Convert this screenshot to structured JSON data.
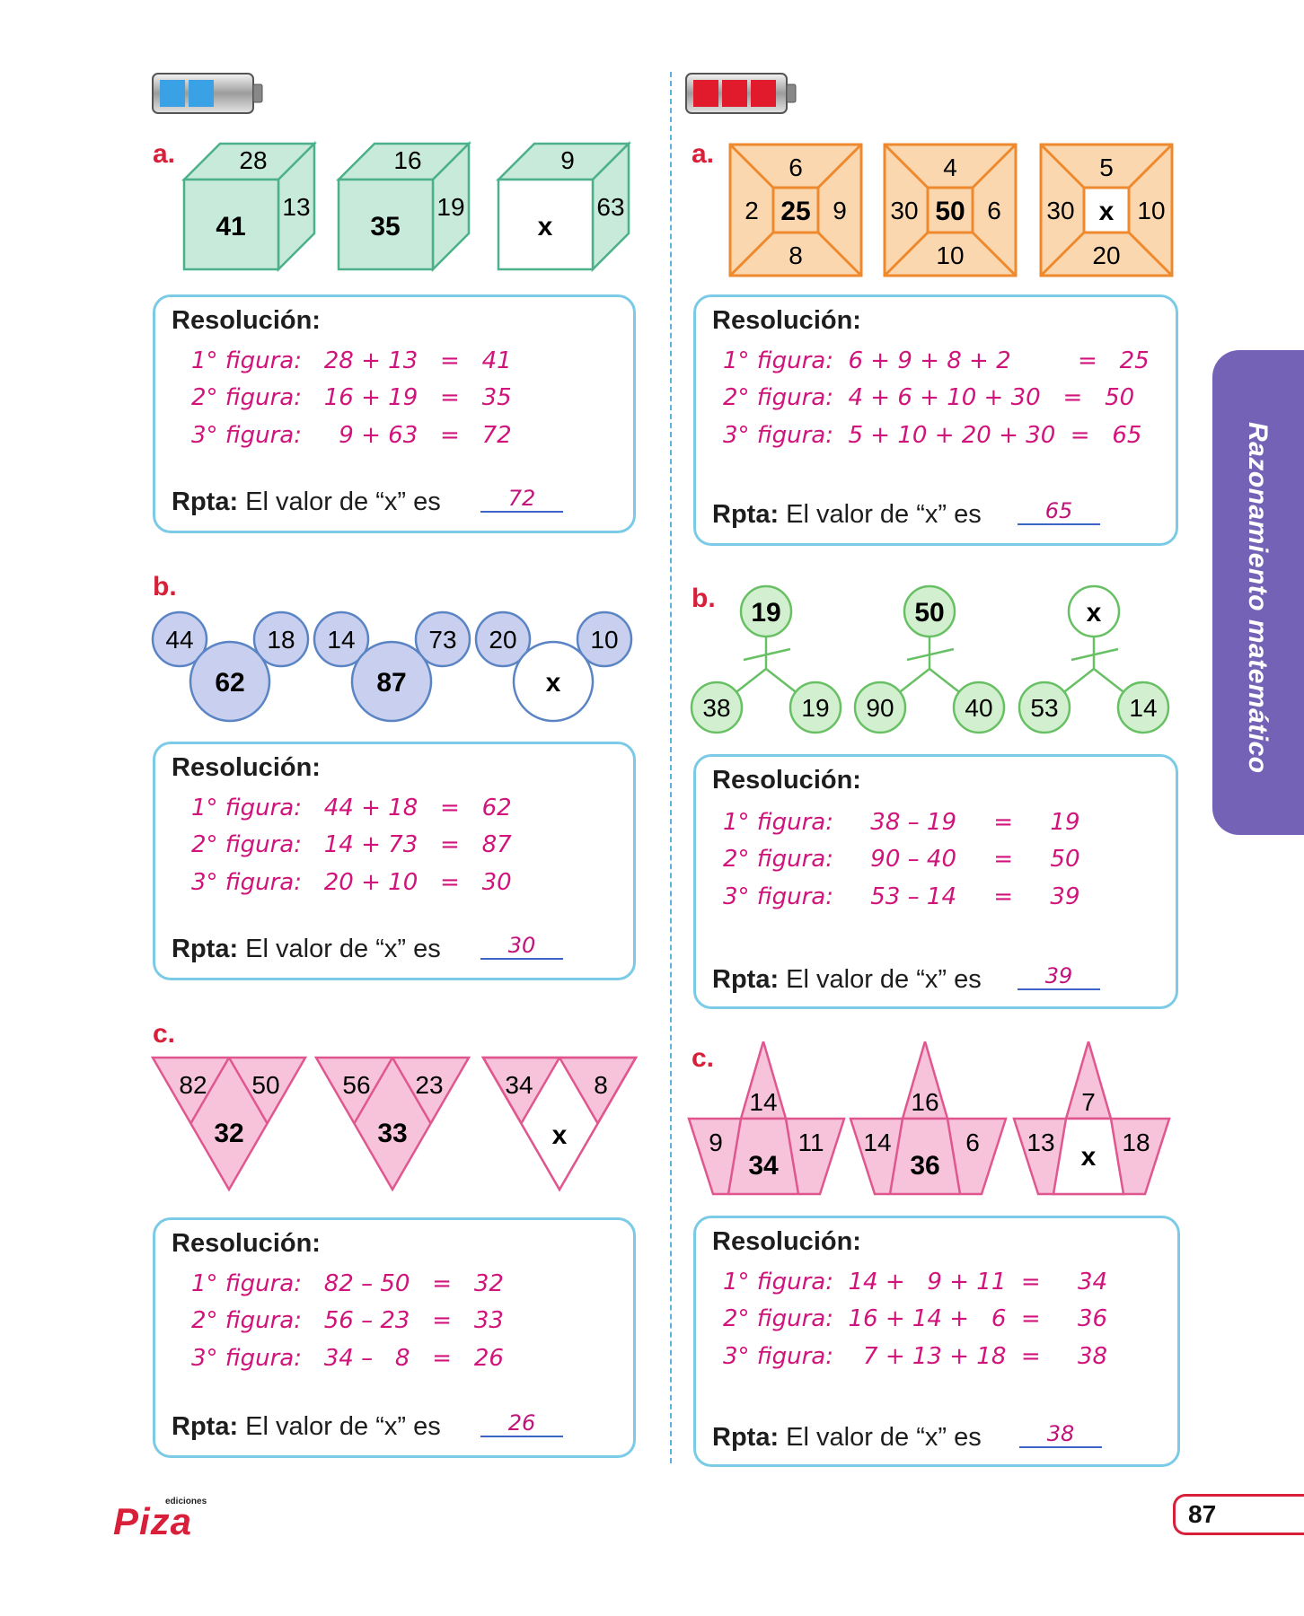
{
  "labels": {
    "a": "a.",
    "b": "b.",
    "c": "c."
  },
  "resolution_title": "Resolución:",
  "rpta_label": "Rpta:",
  "rpta_text": "El valor de “x” es",
  "side_tab": "Razonamiento matemático",
  "page_number": "87",
  "logo": {
    "small": "ediciones",
    "brand": "Piza"
  },
  "colors": {
    "accent_red": "#d8203a",
    "solution_magenta": "#d0147b",
    "box_border": "#7ccbe6",
    "cube_fill": "#c8eadb",
    "cube_stroke": "#4cb08a",
    "circle_fill": "#c9d0ef",
    "circle_stroke": "#5b84c4",
    "triangle_fill": "#f6c3da",
    "triangle_stroke": "#e0578f",
    "frame_fill": "#fbd7b0",
    "frame_stroke": "#ee8a2d",
    "tree_fill": "#d2f0cf",
    "tree_stroke": "#68c064",
    "side_tab": "#7462b7",
    "battery_blue": "#3aa2e4",
    "battery_red": "#e11a2c"
  },
  "left": {
    "a": {
      "figures": [
        {
          "top": "28",
          "side": "13",
          "front": "41"
        },
        {
          "top": "16",
          "side": "19",
          "front": "35"
        },
        {
          "top": "9",
          "side": "63",
          "front": "x"
        }
      ],
      "lines": [
        "1° figura:   28 + 13   =   41",
        "2° figura:   16 + 19   =   35",
        "3° figura:     9 + 63   =   72"
      ],
      "answer": "72"
    },
    "b": {
      "figures": [
        {
          "left": "44",
          "right": "18",
          "center": "62"
        },
        {
          "left": "14",
          "right": "73",
          "center": "87"
        },
        {
          "left": "20",
          "right": "10",
          "center": "x"
        }
      ],
      "lines": [
        "1° figura:   44 + 18   =   62",
        "2° figura:   14 + 73   =   87",
        "3° figura:   20 + 10   =   30"
      ],
      "answer": "30"
    },
    "c": {
      "figures": [
        {
          "left": "82",
          "right": "50",
          "center": "32"
        },
        {
          "left": "56",
          "right": "23",
          "center": "33"
        },
        {
          "left": "34",
          "right": "8",
          "center": "x"
        }
      ],
      "lines": [
        "1° figura:   82 – 50   =   32",
        "2° figura:   56 – 23   =   33",
        "3° figura:   34 –   8   =   26"
      ],
      "answer": "26"
    }
  },
  "right": {
    "a": {
      "figures": [
        {
          "top": "6",
          "left": "2",
          "right": "9",
          "bottom": "8",
          "center": "25"
        },
        {
          "top": "4",
          "left": "30",
          "right": "6",
          "bottom": "10",
          "center": "50"
        },
        {
          "top": "5",
          "left": "30",
          "right": "10",
          "bottom": "20",
          "center": "x"
        }
      ],
      "lines": [
        "1° figura:  6 + 9 + 8 + 2         =   25",
        "2° figura:  4 + 6 + 10 + 30   =   50",
        "3° figura:  5 + 10 + 20 + 30  =   65"
      ],
      "answer": "65"
    },
    "b": {
      "figures": [
        {
          "head": "19",
          "left": "38",
          "right": "19"
        },
        {
          "head": "50",
          "left": "90",
          "right": "40"
        },
        {
          "head": "x",
          "left": "53",
          "right": "14"
        }
      ],
      "lines": [
        "1° figura:     38 – 19     =     19",
        "2° figura:     90 – 40     =     50",
        "3° figura:     53 – 14     =     39"
      ],
      "answer": "39"
    },
    "c": {
      "figures": [
        {
          "top": "14",
          "left": "9",
          "right": "11",
          "center": "34"
        },
        {
          "top": "16",
          "left": "14",
          "right": "6",
          "center": "36"
        },
        {
          "top": "7",
          "left": "13",
          "right": "18",
          "center": "x"
        }
      ],
      "lines": [
        "1° figura:  14 +   9 + 11  =     34",
        "2° figura:  16 + 14 +   6  =     36",
        "3° figura:    7 + 13 + 18  =     38"
      ],
      "answer": "38"
    }
  }
}
